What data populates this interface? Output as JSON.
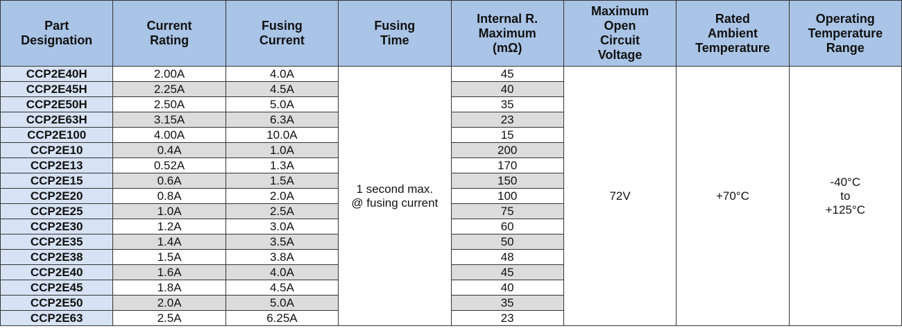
{
  "table": {
    "headers": [
      [
        "Part",
        "Designation"
      ],
      [
        "Current",
        "Rating"
      ],
      [
        "Fusing",
        "Current"
      ],
      [
        "Fusing",
        "Time"
      ],
      [
        "Internal R.",
        "Maximum",
        "(mΩ)"
      ],
      [
        "Maximum",
        "Open",
        "Circuit",
        "Voltage"
      ],
      [
        "Rated",
        "Ambient",
        "Temperature"
      ],
      [
        "Operating",
        "Temperature",
        "Range"
      ]
    ],
    "rows": [
      [
        "CCP2E40H",
        "2.00A",
        "4.0A",
        "45"
      ],
      [
        "CCP2E45H",
        "2.25A",
        "4.5A",
        "40"
      ],
      [
        "CCP2E50H",
        "2.50A",
        "5.0A",
        "35"
      ],
      [
        "CCP2E63H",
        "3.15A",
        "6.3A",
        "23"
      ],
      [
        "CCP2E100",
        "4.00A",
        "10.0A",
        "15"
      ],
      [
        "CCP2E10",
        "0.4A",
        "1.0A",
        "200"
      ],
      [
        "CCP2E13",
        "0.52A",
        "1.3A",
        "170"
      ],
      [
        "CCP2E15",
        "0.6A",
        "1.5A",
        "150"
      ],
      [
        "CCP2E20",
        "0.8A",
        "2.0A",
        "100"
      ],
      [
        "CCP2E25",
        "1.0A",
        "2.5A",
        "75"
      ],
      [
        "CCP2E30",
        "1.2A",
        "3.0A",
        "60"
      ],
      [
        "CCP2E35",
        "1.4A",
        "3.5A",
        "50"
      ],
      [
        "CCP2E38",
        "1.5A",
        "3.8A",
        "48"
      ],
      [
        "CCP2E40",
        "1.6A",
        "4.0A",
        "45"
      ],
      [
        "CCP2E45",
        "1.8A",
        "4.5A",
        "40"
      ],
      [
        "CCP2E50",
        "2.0A",
        "5.0A",
        "35"
      ],
      [
        "CCP2E63",
        "2.5A",
        "6.25A",
        "23"
      ]
    ],
    "merged": {
      "fusing_time": [
        "1 second max.",
        "@ fusing current"
      ],
      "voltage": [
        "72V"
      ],
      "ambient": [
        "+70°C"
      ],
      "range": [
        "-40°C",
        "to",
        "+125°C"
      ]
    }
  }
}
